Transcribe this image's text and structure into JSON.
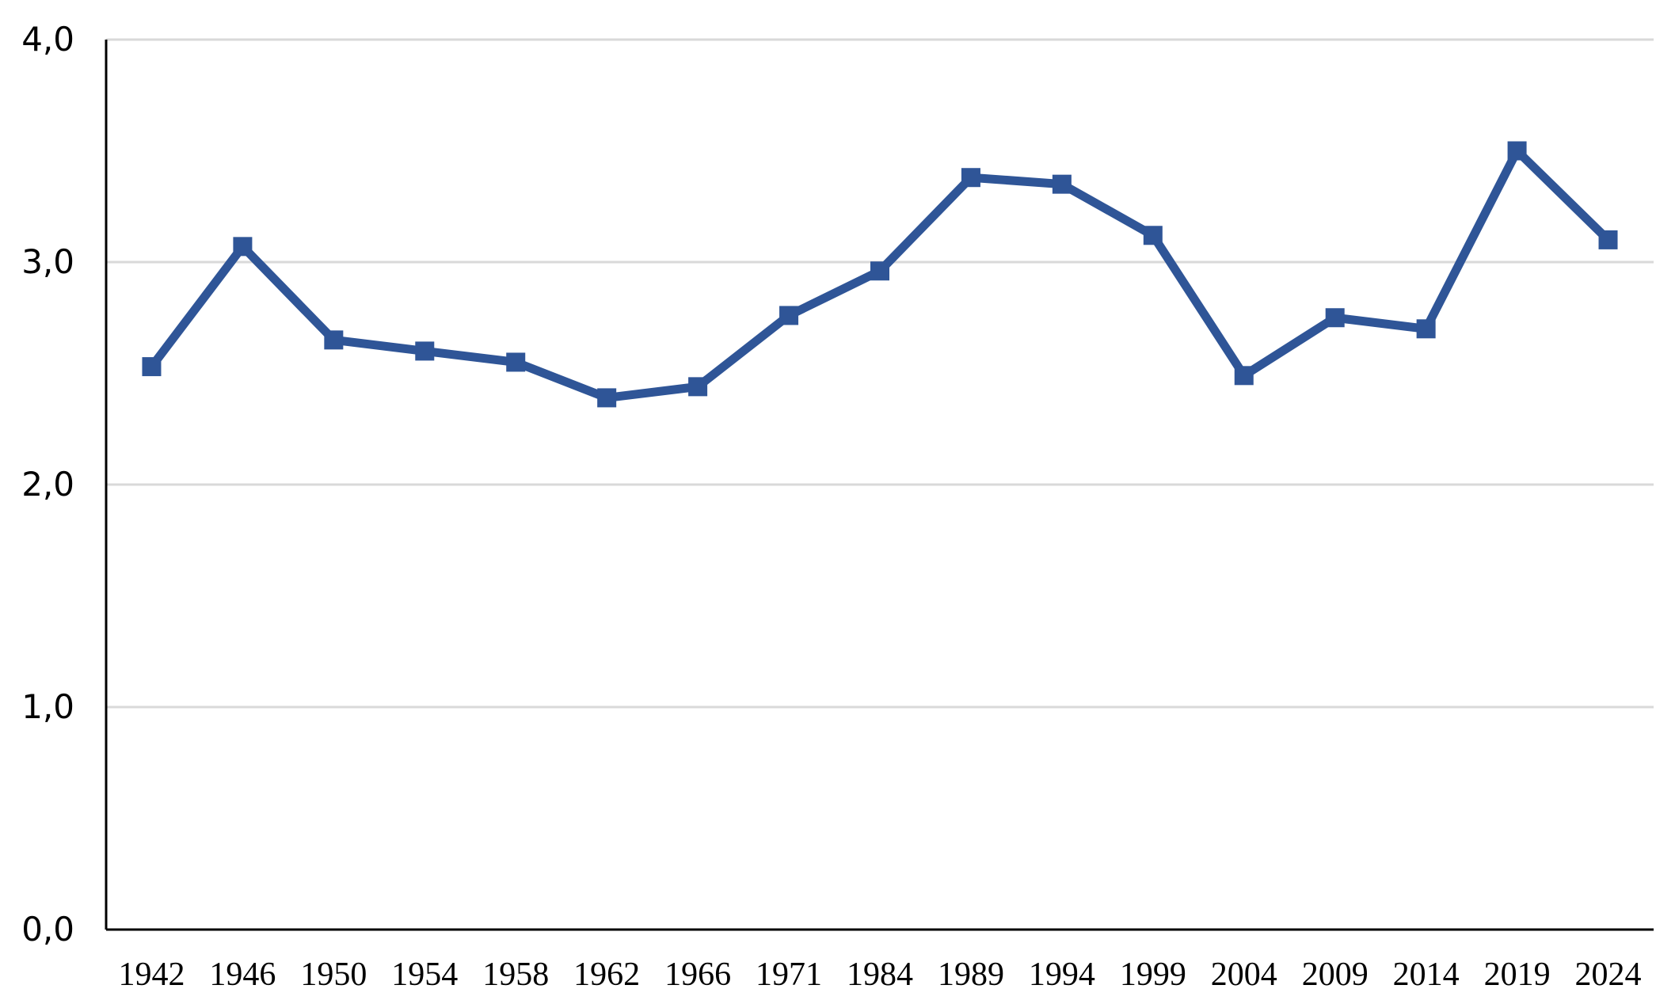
{
  "chart_data": {
    "type": "line",
    "title": "",
    "xlabel": "",
    "ylabel": "",
    "categories": [
      "1942",
      "1946",
      "1950",
      "1954",
      "1958",
      "1962",
      "1966",
      "1971",
      "1984",
      "1989",
      "1994",
      "1999",
      "2004",
      "2009",
      "2014",
      "2019",
      "2024"
    ],
    "y_tick_labels": [
      "0,0",
      "1,0",
      "2,0",
      "3,0",
      "4,0"
    ],
    "ylim": [
      0,
      4
    ],
    "grid": "horizontal",
    "series": [
      {
        "color": "#2f5597",
        "marker": "square",
        "values": [
          2.53,
          3.07,
          2.65,
          2.6,
          2.55,
          2.39,
          2.44,
          2.76,
          2.96,
          3.38,
          3.35,
          3.12,
          2.49,
          2.75,
          2.7,
          3.5,
          3.1
        ]
      }
    ]
  }
}
